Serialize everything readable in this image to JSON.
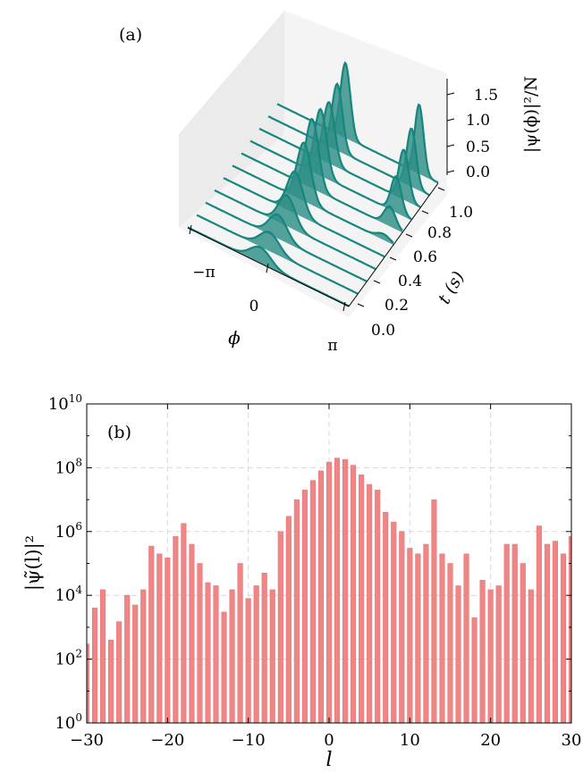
{
  "colors": {
    "ridge_fill": "#2e8f88",
    "ridge_line": "#15867e",
    "bar_fill": "#ef8585",
    "bar_edge": "#e87070",
    "pane_light": "#f4f4f4",
    "pane_dark": "#ebebeb"
  },
  "chart_data": [
    {
      "type": "area",
      "panel_label": "(a)",
      "title": "",
      "xlabel": "ϕ",
      "ylabel": "t (s)",
      "zlabel": "|ψ(ϕ)|²/N",
      "x_tick_labels": [
        "−π",
        "0",
        "π"
      ],
      "y_tick_labels": [
        "0.0",
        "0.2",
        "0.4",
        "0.6",
        "0.8",
        "1.0"
      ],
      "z_tick_labels": [
        "0.0",
        "0.5",
        "1.0",
        "1.5"
      ],
      "xlim": [
        -3.1416,
        3.1416
      ],
      "ylim": [
        0,
        1.0
      ],
      "zlim": [
        0,
        1.75
      ],
      "series": [
        {
          "t": 0.0,
          "peaks": [
            {
              "phi": -0.3,
              "amp": 0.28,
              "width": 0.4
            }
          ]
        },
        {
          "t": 0.1,
          "peaks": [
            {
              "phi": -0.3,
              "amp": 0.33,
              "width": 0.38
            }
          ]
        },
        {
          "t": 0.2,
          "peaks": [
            {
              "phi": -0.32,
              "amp": 0.42,
              "width": 0.35
            }
          ]
        },
        {
          "t": 0.3,
          "peaks": [
            {
              "phi": -0.32,
              "amp": 0.55,
              "width": 0.32
            }
          ]
        },
        {
          "t": 0.4,
          "peaks": [
            {
              "phi": -0.35,
              "amp": 0.75,
              "width": 0.3
            }
          ]
        },
        {
          "t": 0.5,
          "peaks": [
            {
              "phi": -0.35,
              "amp": 1.05,
              "width": 0.27
            },
            {
              "phi": 2.75,
              "amp": 0.1,
              "width": 0.25
            }
          ]
        },
        {
          "t": 0.6,
          "peaks": [
            {
              "phi": -0.38,
              "amp": 1.25,
              "width": 0.25
            },
            {
              "phi": 2.65,
              "amp": 0.35,
              "width": 0.22
            }
          ]
        },
        {
          "t": 0.7,
          "peaks": [
            {
              "phi": -0.4,
              "amp": 1.2,
              "width": 0.23
            },
            {
              "phi": 2.55,
              "amp": 0.65,
              "width": 0.2
            }
          ]
        },
        {
          "t": 0.8,
          "peaks": [
            {
              "phi": -0.42,
              "amp": 1.1,
              "width": 0.22
            },
            {
              "phi": 2.5,
              "amp": 0.9,
              "width": 0.19
            }
          ]
        },
        {
          "t": 0.9,
          "peaks": [
            {
              "phi": -0.45,
              "amp": 1.2,
              "width": 0.2
            },
            {
              "phi": 2.45,
              "amp": 1.05,
              "width": 0.18
            }
          ]
        },
        {
          "t": 1.0,
          "peaks": [
            {
              "phi": -0.48,
              "amp": 1.35,
              "width": 0.19
            },
            {
              "phi": 2.4,
              "amp": 1.25,
              "width": 0.17
            }
          ]
        }
      ]
    },
    {
      "type": "bar",
      "panel_label": "(b)",
      "title": "",
      "xlabel": "l",
      "ylabel": "|ψ̃(l)|²",
      "y_scale": "log",
      "xlim": [
        -30,
        30
      ],
      "ylim": [
        1,
        10000000000
      ],
      "grid": true,
      "x_ticks": [
        -30,
        -20,
        -10,
        0,
        10,
        20,
        30
      ],
      "x_tick_labels": [
        "−30",
        "−20",
        "−10",
        "0",
        "10",
        "20",
        "30"
      ],
      "y_tick_labels": [
        "10^0",
        "10^2",
        "10^4",
        "10^6",
        "10^8",
        "10^10"
      ],
      "categories": [
        -30,
        -29,
        -28,
        -27,
        -26,
        -25,
        -24,
        -23,
        -22,
        -21,
        -20,
        -19,
        -18,
        -17,
        -16,
        -15,
        -14,
        -13,
        -12,
        -11,
        -10,
        -9,
        -8,
        -7,
        -6,
        -5,
        -4,
        -3,
        -2,
        -1,
        0,
        1,
        2,
        3,
        4,
        5,
        6,
        7,
        8,
        9,
        10,
        11,
        12,
        13,
        14,
        15,
        16,
        17,
        18,
        19,
        20,
        21,
        22,
        23,
        24,
        25,
        26,
        27,
        28,
        29,
        30
      ],
      "values": [
        300,
        4000,
        15000,
        400,
        1500,
        10000,
        5000,
        15000,
        350000,
        200000,
        150000,
        700000,
        1800000,
        400000,
        100000,
        25000,
        20000,
        3000,
        15000,
        100000,
        8000,
        20000,
        50000,
        15000,
        1000000,
        3000000,
        10000000,
        20000000,
        40000000,
        80000000,
        150000000,
        200000000,
        180000000,
        120000000,
        60000000,
        30000000,
        20000000,
        4000000,
        2000000,
        1000000,
        300000,
        200000,
        400000,
        10000000,
        200000,
        100000,
        20000,
        200000,
        2000,
        30000,
        15000,
        20000,
        400000,
        400000,
        100000,
        15000,
        1500000,
        400000,
        500000,
        200000,
        700000
      ]
    }
  ]
}
